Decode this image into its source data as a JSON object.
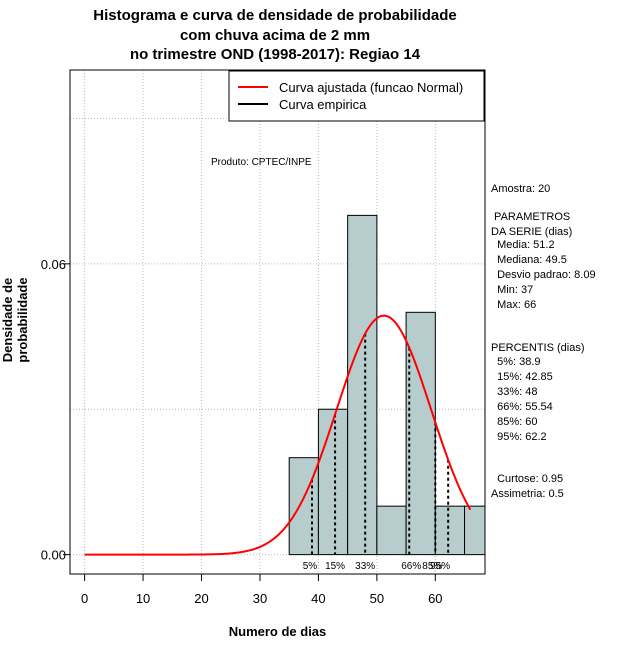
{
  "chart_data": {
    "type": "histogram",
    "title_lines": [
      "Histograma e curva de densidade de probabilidade",
      "com chuva acima de 2 mm",
      "no trimestre OND (1998-2017): Regiao 14"
    ],
    "xlabel": "Numero de dias",
    "ylabel": "Densidade de probabilidade",
    "xlim": [
      -2.5,
      68.5
    ],
    "ylim": [
      -0.004,
      0.1
    ],
    "xticks": [
      0,
      10,
      20,
      30,
      40,
      50,
      60
    ],
    "yticks": [
      0.0,
      0.06
    ],
    "ytick_labels": [
      "0.00",
      "0.06"
    ],
    "bars": [
      {
        "x0": 35,
        "x1": 40,
        "density": 0.02
      },
      {
        "x0": 40,
        "x1": 45,
        "density": 0.03
      },
      {
        "x0": 45,
        "x1": 50,
        "density": 0.07
      },
      {
        "x0": 50,
        "x1": 55,
        "density": 0.01
      },
      {
        "x0": 55,
        "x1": 60,
        "density": 0.05
      },
      {
        "x0": 60,
        "x1": 65,
        "density": 0.01
      },
      {
        "x0": 65,
        "x1": 70,
        "density": 0.01
      }
    ],
    "normal_curve": {
      "mean": 51.2,
      "sd": 8.09,
      "x_from": 0,
      "x_to": 66
    },
    "percentile_lines": [
      {
        "x": 38.9,
        "label": "5%"
      },
      {
        "x": 42.85,
        "label": "15%"
      },
      {
        "x": 48,
        "label": "33%"
      },
      {
        "x": 55.54,
        "label": "66%"
      },
      {
        "x": 60,
        "label": "85%"
      },
      {
        "x": 62.2,
        "label": "95%"
      }
    ],
    "legend": [
      {
        "label": "Curva ajustada (funcao Normal)",
        "color": "#ff0000"
      },
      {
        "label": "Curva empirica",
        "color": "#000000"
      }
    ],
    "legend_position": "top-right",
    "annotation": "Produto: CPTEC/INPE",
    "bar_color": "#b7cdcd",
    "curve_color": "#ff0000"
  },
  "stats": {
    "sample": "Amostra: 20",
    "params_title": " PARAMETROS\nDA SERIE (dias)",
    "params_values": "  Media: 51.2\n  Mediana: 49.5\n  Desvio padrao: 8.09\n  Min: 37\n  Max: 66",
    "percentis_title": "PERCENTIS (dias)",
    "percentis_values": "  5%: 38.9\n  15%: 42.85\n  33%: 48\n  66%: 55.54\n  85%: 60\n  95%: 62.2",
    "shape": "  Curtose: 0.95\nAssimetria: 0.5"
  }
}
